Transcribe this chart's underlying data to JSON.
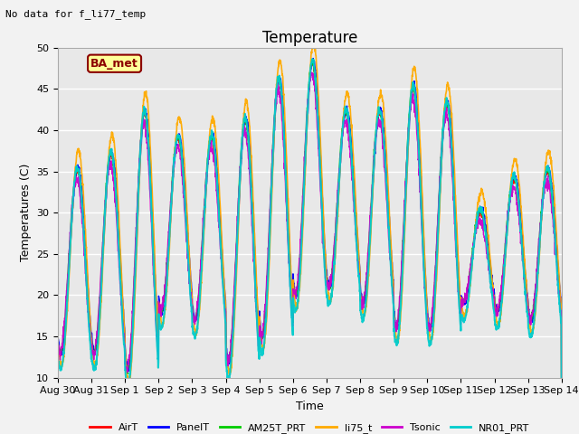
{
  "title": "Temperature",
  "ylabel": "Temperatures (C)",
  "xlabel": "Time",
  "ylim": [
    10,
    50
  ],
  "annotation_text": "No data for f_li77_temp",
  "legend_label": "BA_met",
  "legend_entries": [
    "AirT",
    "PanelT",
    "AM25T_PRT",
    "li75_t",
    "Tsonic",
    "NR01_PRT"
  ],
  "legend_colors": [
    "#ff0000",
    "#0000ff",
    "#00cc00",
    "#ffaa00",
    "#cc00cc",
    "#00cccc"
  ],
  "background_color": "#e8e8e8",
  "fig_background": "#f2f2f2",
  "grid_color": "#ffffff",
  "xtick_labels": [
    "Aug 30",
    "Aug 31",
    "Sep 1",
    "Sep 2",
    "Sep 3",
    "Sep 4",
    "Sep 5",
    "Sep 6",
    "Sep 7",
    "Sep 8",
    "Sep 9",
    "Sep 10",
    "Sep 11",
    "Sep 12",
    "Sep 13",
    "Sep 14"
  ],
  "n_days": 15,
  "peak_maxes": [
    35,
    37,
    42,
    39,
    39,
    41,
    46,
    48,
    42,
    42,
    45,
    43,
    30,
    34,
    35
  ],
  "trough_mins": [
    13,
    13,
    11,
    18,
    17,
    12,
    15,
    20,
    21,
    19,
    16,
    16,
    19,
    18,
    17
  ],
  "yticks": [
    10,
    15,
    20,
    25,
    30,
    35,
    40,
    45,
    50
  ],
  "title_fontsize": 12,
  "axis_fontsize": 9,
  "tick_fontsize": 8,
  "legend_fontsize": 8
}
